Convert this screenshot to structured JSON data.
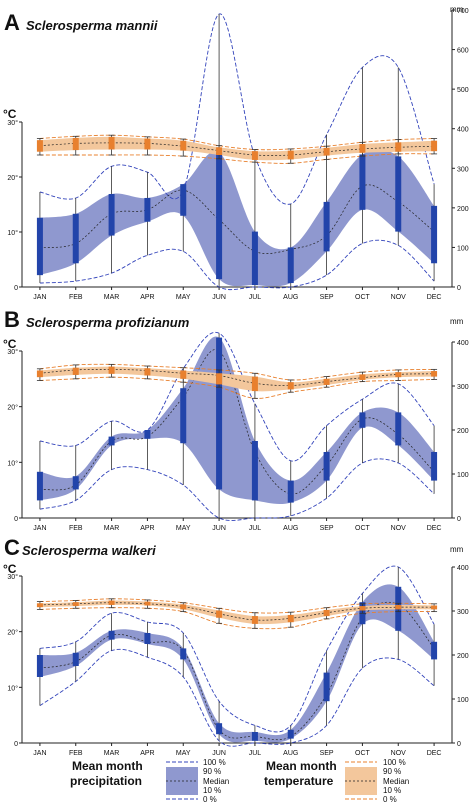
{
  "chart_data": [
    {
      "type": "area",
      "panel_letter": "A",
      "title": "Sclerosperma mannii",
      "ylabel_left": "°C",
      "ylabel_right": "mm",
      "x_ticks": [
        "JAN",
        "FEB",
        "MAR",
        "APR",
        "MAY",
        "JUN",
        "JUL",
        "AUG",
        "SEP",
        "OCT",
        "NOV",
        "DEC"
      ],
      "left_ticks": [
        "0",
        "10°",
        "20°",
        "30°"
      ],
      "right_ticks": [
        "0",
        "100",
        "200",
        "300",
        "400",
        "500",
        "600",
        "700"
      ],
      "ylim_temp": [
        0,
        30
      ],
      "ylim_precip": [
        0,
        700
      ],
      "precipitation": {
        "p0": [
          10,
          15,
          35,
          80,
          90,
          0,
          0,
          0,
          30,
          110,
          105,
          15
        ],
        "p10": [
          30,
          60,
          130,
          165,
          180,
          20,
          5,
          10,
          90,
          195,
          140,
          60
        ],
        "median": [
          100,
          110,
          185,
          195,
          245,
          170,
          90,
          95,
          130,
          255,
          215,
          140
        ],
        "p90": [
          175,
          185,
          235,
          225,
          260,
          340,
          140,
          100,
          215,
          335,
          330,
          205
        ],
        "p100": [
          240,
          225,
          305,
          290,
          245,
          690,
          330,
          210,
          385,
          555,
          555,
          260
        ]
      },
      "temperature": {
        "p0": [
          24.0,
          24.0,
          24.0,
          24.0,
          23.8,
          23.3,
          22.7,
          22.5,
          23.2,
          23.8,
          24.2,
          24.2
        ],
        "p10": [
          24.6,
          24.9,
          25.0,
          25.0,
          24.8,
          24.0,
          23.1,
          23.2,
          23.9,
          24.4,
          24.6,
          24.7
        ],
        "median": [
          25.7,
          26.1,
          26.2,
          26.1,
          25.6,
          24.8,
          24.0,
          24.0,
          24.6,
          25.1,
          25.4,
          25.6
        ],
        "p90": [
          26.7,
          27.1,
          27.3,
          27.0,
          26.6,
          25.4,
          24.7,
          24.8,
          25.3,
          26.0,
          26.3,
          26.6
        ],
        "p100": [
          27.0,
          27.4,
          27.6,
          27.3,
          26.9,
          25.7,
          25.0,
          25.1,
          25.6,
          26.3,
          26.8,
          27.0
        ]
      }
    },
    {
      "type": "area",
      "panel_letter": "B",
      "title": "Sclerosperma profizianum",
      "ylabel_left": "°C",
      "ylabel_right": "mm",
      "x_ticks": [
        "JAN",
        "FEB",
        "MAR",
        "APR",
        "MAY",
        "JUN",
        "JUL",
        "AUG",
        "SEP",
        "OCT",
        "NOV",
        "DEC"
      ],
      "left_ticks": [
        "0",
        "10°",
        "20°",
        "30°"
      ],
      "right_ticks": [
        "0",
        "100",
        "200",
        "300",
        "400"
      ],
      "ylim_temp": [
        0,
        30
      ],
      "ylim_precip": [
        0,
        400
      ],
      "precipitation": {
        "p0": [
          20,
          40,
          110,
          110,
          75,
          0,
          0,
          5,
          45,
          125,
          125,
          55
        ],
        "p10": [
          40,
          65,
          165,
          180,
          170,
          65,
          40,
          35,
          85,
          205,
          165,
          85
        ],
        "median": [
          65,
          75,
          175,
          185,
          275,
          380,
          150,
          55,
          120,
          225,
          190,
          105
        ],
        "p90": [
          105,
          95,
          185,
          200,
          295,
          410,
          175,
          85,
          150,
          240,
          240,
          150
        ],
        "p100": [
          175,
          165,
          220,
          200,
          340,
          420,
          260,
          130,
          210,
          270,
          305,
          210
        ]
      },
      "temperature": {
        "p0": [
          24.7,
          25.0,
          25.3,
          25.0,
          24.4,
          23.5,
          21.5,
          22.6,
          23.5,
          24.5,
          24.7,
          24.9
        ],
        "p10": [
          25.3,
          25.7,
          25.9,
          25.6,
          25.0,
          24.0,
          22.8,
          23.1,
          23.9,
          24.8,
          25.3,
          25.4
        ],
        "median": [
          26.0,
          26.6,
          26.7,
          26.5,
          26.0,
          25.6,
          24.2,
          23.8,
          24.5,
          25.2,
          25.8,
          25.9
        ],
        "p90": [
          26.5,
          27.0,
          27.2,
          26.9,
          26.5,
          26.0,
          25.4,
          24.4,
          25.0,
          25.8,
          26.2,
          26.4
        ],
        "p100": [
          26.8,
          27.5,
          27.6,
          27.3,
          27.0,
          26.6,
          26.0,
          24.8,
          25.4,
          26.2,
          26.6,
          26.7
        ]
      }
    },
    {
      "type": "area",
      "panel_letter": "C",
      "title": "Sclerosperma walkeri",
      "ylabel_left": "°C",
      "ylabel_right": "mm",
      "x_ticks": [
        "JAN",
        "FEB",
        "MAR",
        "APR",
        "MAY",
        "JUN",
        "JUL",
        "AUG",
        "SEP",
        "OCT",
        "NOV",
        "DEC"
      ],
      "left_ticks": [
        "0",
        "10°",
        "20°",
        "30°"
      ],
      "right_ticks": [
        "0",
        "100",
        "200",
        "300",
        "400"
      ],
      "ylim_temp": [
        0,
        30
      ],
      "ylim_precip": [
        0,
        400
      ],
      "precipitation": {
        "p0": [
          85,
          140,
          210,
          195,
          150,
          5,
          0,
          0,
          40,
          170,
          190,
          130
        ],
        "p10": [
          150,
          175,
          235,
          225,
          190,
          20,
          5,
          10,
          95,
          270,
          255,
          190
        ],
        "median": [
          170,
          185,
          245,
          230,
          210,
          30,
          15,
          15,
          110,
          285,
          315,
          215
        ],
        "p90": [
          200,
          205,
          255,
          250,
          215,
          45,
          25,
          30,
          160,
          320,
          355,
          230
        ],
        "p100": [
          215,
          230,
          295,
          275,
          250,
          95,
          40,
          40,
          210,
          340,
          400,
          270
        ]
      },
      "temperature": {
        "p0": [
          24.0,
          24.2,
          24.3,
          24.2,
          23.6,
          21.5,
          20.6,
          20.8,
          22.3,
          23.3,
          23.6,
          23.6
        ],
        "p10": [
          24.4,
          24.6,
          24.8,
          24.7,
          24.0,
          22.5,
          21.4,
          21.7,
          22.8,
          23.8,
          24.0,
          24.0
        ],
        "median": [
          24.8,
          25.0,
          25.2,
          25.0,
          24.5,
          23.2,
          22.1,
          22.4,
          23.4,
          24.2,
          24.4,
          24.4
        ],
        "p90": [
          25.1,
          25.3,
          25.6,
          25.4,
          24.9,
          23.8,
          22.8,
          23.0,
          23.9,
          24.6,
          24.8,
          24.7
        ],
        "p100": [
          25.4,
          25.6,
          25.9,
          25.7,
          25.2,
          24.2,
          23.4,
          23.5,
          24.3,
          25.0,
          25.1,
          25.0
        ]
      }
    }
  ],
  "legend": {
    "precip_title_line1": "Mean month",
    "precip_title_line2": "precipitation",
    "temp_title_line1": "Mean month",
    "temp_title_line2": "temperature",
    "labels": [
      "100 %",
      "90 %",
      "Median",
      "10 %",
      "0 %"
    ]
  },
  "colors": {
    "precip_fill": "#8f98cf",
    "precip_bar": "#2244aa",
    "precip_dash": "#3344bb",
    "temp_fill": "#f3c79c",
    "temp_bar": "#e8802e",
    "temp_dash": "#e8802e",
    "axis": "#222222"
  }
}
